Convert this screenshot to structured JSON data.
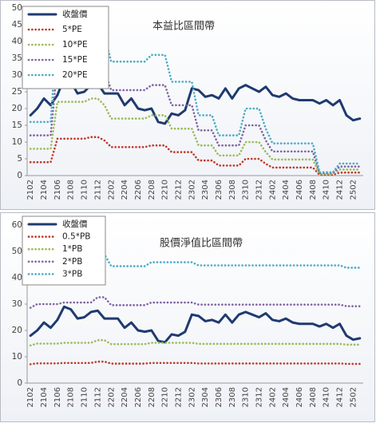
{
  "chart_data": [
    {
      "type": "line",
      "title": "本益比區間帶",
      "legend": "upper left",
      "grid": false,
      "categories": [
        "2102",
        null,
        "2104",
        null,
        "2106",
        null,
        "2108",
        null,
        "2110",
        null,
        "2112",
        null,
        "2202",
        null,
        "2204",
        null,
        "2206",
        null,
        "2208",
        null,
        "2210",
        null,
        "2212",
        null,
        "2302",
        null,
        "2304",
        null,
        "2306",
        null,
        "2308",
        null,
        "2310",
        null,
        "2312",
        null,
        "2402",
        null,
        "2404",
        null,
        "2406",
        null,
        "2408",
        null,
        "2410",
        null,
        "2412",
        null,
        "2502",
        null
      ],
      "ylim": [
        0,
        50
      ],
      "yticks": [
        0,
        5,
        10,
        15,
        20,
        25,
        30,
        35,
        40,
        45,
        50
      ],
      "series": [
        {
          "name": "收盤價",
          "color": "#1f3a70",
          "linestyle": "solid",
          "values": [
            18,
            20,
            23,
            21,
            24,
            29,
            28,
            24.5,
            25,
            27,
            27.5,
            24.5,
            24.5,
            24.5,
            21,
            23,
            20,
            19.5,
            20,
            16,
            15.5,
            18.5,
            18,
            19.5,
            26,
            25.5,
            23.5,
            24,
            23,
            26,
            23,
            26,
            27,
            26,
            25,
            26.5,
            24,
            23.5,
            24.5,
            23,
            22.5,
            22.5,
            22.5,
            21.5,
            22.5,
            21,
            22.5,
            18,
            16.5,
            17
          ]
        },
        {
          "name": "5*PE",
          "color": "#c0392b",
          "linestyle": "dotted",
          "values": [
            4,
            4,
            4,
            4,
            11,
            11,
            11,
            11,
            11,
            11.5,
            11.5,
            10.5,
            8.5,
            8.5,
            8.5,
            8.5,
            8.5,
            8.5,
            9,
            9,
            9,
            7,
            7,
            7,
            7,
            4.5,
            4.5,
            4.5,
            3,
            3,
            3,
            3,
            5,
            5,
            5,
            3.5,
            2.4,
            2.4,
            2.4,
            2.4,
            2.4,
            2.4,
            2.4,
            0.25,
            0.25,
            0.25,
            0.9,
            0.9,
            0.9,
            0.9
          ]
        },
        {
          "name": "10*PE",
          "color": "#9bbb59",
          "linestyle": "dotted",
          "values": [
            8,
            8,
            8,
            8,
            22,
            22,
            22,
            22,
            22,
            23,
            23,
            21,
            17,
            17,
            17,
            17,
            17,
            17,
            18,
            18,
            18,
            14,
            14,
            14,
            14,
            9,
            9,
            9,
            6,
            6,
            6,
            6,
            10,
            10,
            10,
            7,
            4.8,
            4.8,
            4.8,
            4.8,
            4.8,
            4.8,
            4.8,
            0.5,
            0.5,
            0.5,
            1.8,
            1.8,
            1.8,
            1.8
          ]
        },
        {
          "name": "15*PE",
          "color": "#8064a2",
          "linestyle": "dotted",
          "values": [
            12,
            12,
            12,
            12,
            33,
            33,
            33,
            33,
            33,
            34.5,
            34.5,
            31.5,
            25.5,
            25.5,
            25.5,
            25.5,
            25.5,
            25.5,
            27,
            27,
            27,
            21,
            21,
            21,
            21,
            13.5,
            13.5,
            13.5,
            9,
            9,
            9,
            9,
            15,
            15,
            15,
            10.5,
            7.2,
            7.2,
            7.2,
            7.2,
            7.2,
            7.2,
            7.2,
            0.75,
            0.75,
            0.75,
            2.7,
            2.7,
            2.7,
            2.7
          ]
        },
        {
          "name": "20*PE",
          "color": "#4bacc6",
          "linestyle": "dotted",
          "values": [
            16,
            16,
            16,
            16,
            44,
            44,
            44,
            44,
            44,
            46,
            46,
            42,
            34,
            34,
            34,
            34,
            34,
            34,
            36,
            36,
            36,
            28,
            28,
            28,
            28,
            18,
            18,
            18,
            12,
            12,
            12,
            12,
            20,
            20,
            20,
            14,
            9.6,
            9.6,
            9.6,
            9.6,
            9.6,
            9.6,
            9.6,
            1,
            1,
            1,
            3.6,
            3.6,
            3.6,
            3.6
          ]
        }
      ]
    },
    {
      "type": "line",
      "title": "股價淨值比區間帶",
      "legend": "upper left",
      "grid": false,
      "categories": [
        "2102",
        null,
        "2104",
        null,
        "2106",
        null,
        "2108",
        null,
        "2110",
        null,
        "2112",
        null,
        "2202",
        null,
        "2204",
        null,
        "2206",
        null,
        "2208",
        null,
        "2210",
        null,
        "2212",
        null,
        "2302",
        null,
        "2304",
        null,
        "2306",
        null,
        "2308",
        null,
        "2310",
        null,
        "2312",
        null,
        "2402",
        null,
        "2404",
        null,
        "2406",
        null,
        "2408",
        null,
        "2410",
        null,
        "2412",
        null,
        "2502",
        null
      ],
      "ylim": [
        0,
        60
      ],
      "yticks": [
        0,
        10,
        20,
        30,
        40,
        50,
        60
      ],
      "series": [
        {
          "name": "收盤價",
          "color": "#1f3a70",
          "linestyle": "solid",
          "values": [
            18,
            20,
            23,
            21,
            24,
            29,
            28,
            24.5,
            25,
            27,
            27.5,
            24.5,
            24.5,
            24.5,
            21,
            23,
            20,
            19.5,
            20,
            16,
            15.5,
            18.5,
            18,
            19.5,
            26,
            25.5,
            23.5,
            24,
            23,
            26,
            23,
            26,
            27,
            26,
            25,
            26.5,
            24,
            23.5,
            24.5,
            23,
            22.5,
            22.5,
            22.5,
            21.5,
            22.5,
            21,
            22.5,
            18,
            16.5,
            17
          ]
        },
        {
          "name": "0.5*PB",
          "color": "#c0392b",
          "linestyle": "dotted",
          "values": [
            7.15,
            7.5,
            7.5,
            7.5,
            7.5,
            7.65,
            7.65,
            7.65,
            7.65,
            7.65,
            8.15,
            8.15,
            7.4,
            7.4,
            7.4,
            7.4,
            7.4,
            7.4,
            7.65,
            7.65,
            7.65,
            7.65,
            7.65,
            7.65,
            7.65,
            7.45,
            7.45,
            7.45,
            7.45,
            7.45,
            7.45,
            7.45,
            7.45,
            7.45,
            7.45,
            7.45,
            7.45,
            7.45,
            7.45,
            7.45,
            7.45,
            7.45,
            7.45,
            7.45,
            7.45,
            7.45,
            7.45,
            7.3,
            7.3,
            7.3
          ]
        },
        {
          "name": "1*PB",
          "color": "#9bbb59",
          "linestyle": "dotted",
          "values": [
            14.3,
            15,
            15,
            15,
            15,
            15.3,
            15.3,
            15.3,
            15.3,
            15.3,
            16.3,
            16.3,
            14.8,
            14.8,
            14.8,
            14.8,
            14.8,
            14.8,
            15.3,
            15.3,
            15.3,
            15.3,
            15.3,
            15.3,
            15.3,
            14.9,
            14.9,
            14.9,
            14.9,
            14.9,
            14.9,
            14.9,
            14.9,
            14.9,
            14.9,
            14.9,
            14.9,
            14.9,
            14.9,
            14.9,
            14.9,
            14.9,
            14.9,
            14.9,
            14.9,
            14.9,
            14.9,
            14.6,
            14.6,
            14.6
          ]
        },
        {
          "name": "2*PB",
          "color": "#8064a2",
          "linestyle": "dotted",
          "values": [
            28.6,
            30,
            30,
            30,
            30,
            30.6,
            30.6,
            30.6,
            30.6,
            30.6,
            32.6,
            32.6,
            29.6,
            29.6,
            29.6,
            29.6,
            29.6,
            29.6,
            30.6,
            30.6,
            30.6,
            30.6,
            30.6,
            30.6,
            30.6,
            29.8,
            29.8,
            29.8,
            29.8,
            29.8,
            29.8,
            29.8,
            29.8,
            29.8,
            29.8,
            29.8,
            29.8,
            29.8,
            29.8,
            29.8,
            29.8,
            29.8,
            29.8,
            29.8,
            29.8,
            29.8,
            29.8,
            29.2,
            29.2,
            29.2
          ]
        },
        {
          "name": "3*PB",
          "color": "#4bacc6",
          "linestyle": "dotted",
          "values": [
            42.9,
            45,
            45,
            45,
            45,
            45.9,
            45.9,
            45.9,
            45.9,
            45.9,
            48.9,
            48.9,
            44.4,
            44.4,
            44.4,
            44.4,
            44.4,
            44.4,
            45.9,
            45.9,
            45.9,
            45.9,
            45.9,
            45.9,
            45.9,
            44.7,
            44.7,
            44.7,
            44.7,
            44.7,
            44.7,
            44.7,
            44.7,
            44.7,
            44.7,
            44.7,
            44.7,
            44.7,
            44.7,
            44.7,
            44.7,
            44.7,
            44.7,
            44.7,
            44.7,
            44.7,
            44.7,
            43.8,
            43.8,
            43.8
          ]
        }
      ]
    }
  ]
}
